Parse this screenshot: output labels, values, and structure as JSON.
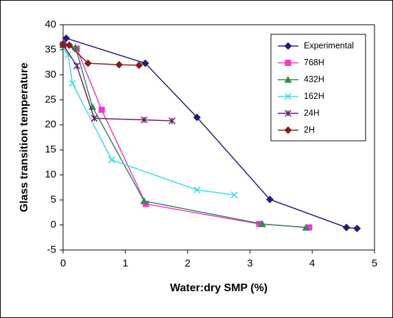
{
  "chart_data": {
    "type": "line",
    "x_label": "Water:dry SMP (%)",
    "y_label": "Glass transition temperature",
    "xlim": [
      0,
      5
    ],
    "xticks": [
      0,
      1,
      2,
      3,
      4,
      5
    ],
    "ylim": [
      -5,
      40
    ],
    "yticks": [
      -5,
      0,
      5,
      10,
      15,
      20,
      25,
      30,
      35,
      40
    ],
    "grid": false,
    "legend": "top-right",
    "series": [
      {
        "name": "Experimental",
        "color": "#1f1f7a",
        "marker": "diamond",
        "x": [
          0,
          0.05,
          1.32,
          2.15,
          3.32,
          4.55,
          4.72
        ],
        "values": [
          36.2,
          37.3,
          32.3,
          21.5,
          5.1,
          -0.5,
          -0.7
        ]
      },
      {
        "name": "768H",
        "color": "#ff33cc",
        "marker": "square",
        "x": [
          0,
          0.22,
          0.62,
          1.33,
          3.15,
          3.95
        ],
        "values": [
          36,
          35.2,
          23,
          4.2,
          0.2,
          -0.5
        ]
      },
      {
        "name": "432H",
        "color": "#2e8b57",
        "marker": "triangle",
        "x": [
          0,
          0.2,
          0.47,
          1.3,
          3.2,
          3.9
        ],
        "values": [
          36,
          35.5,
          23.6,
          4.8,
          0.2,
          -0.5
        ]
      },
      {
        "name": "162H",
        "color": "#33e0e8",
        "marker": "x",
        "x": [
          0,
          0.08,
          0.15,
          0.78,
          2.15,
          2.75
        ],
        "values": [
          35.5,
          34,
          28.3,
          13,
          7,
          6
        ]
      },
      {
        "name": "24H",
        "color": "#6a1b6a",
        "marker": "star",
        "x": [
          0,
          0.22,
          0.5,
          1.3,
          1.75
        ],
        "values": [
          36,
          31.8,
          21.3,
          21,
          20.8
        ]
      },
      {
        "name": "2H",
        "color": "#8b1a1a",
        "marker": "diamond",
        "x": [
          0,
          0.1,
          0.4,
          0.9,
          1.22
        ],
        "values": [
          36,
          35.9,
          32.3,
          32,
          31.9
        ]
      }
    ]
  }
}
